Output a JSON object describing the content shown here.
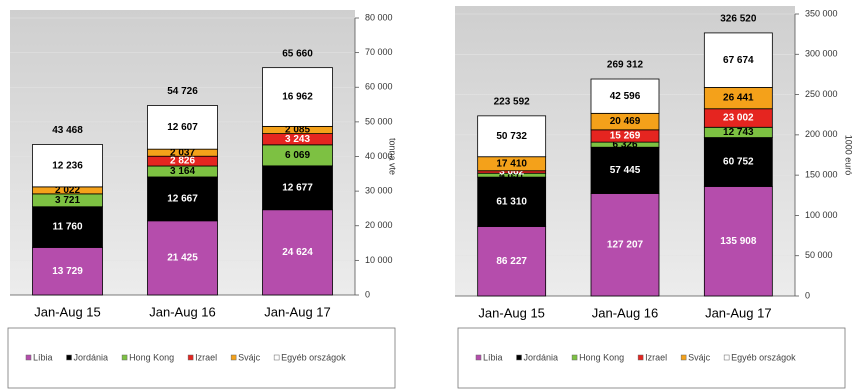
{
  "chart_data": [
    {
      "type": "stacked-bar",
      "y_label": "tonna vte",
      "categories": [
        "Jan-Aug 15",
        "Jan-Aug 16",
        "Jan-Aug 17"
      ],
      "totals": [
        43468,
        54726,
        65660
      ],
      "total_labels": [
        "43 468",
        "54 726",
        "65 660"
      ],
      "series": [
        {
          "name": "Líbia",
          "color": "#b54dac",
          "values": [
            13729,
            21425,
            24624
          ],
          "value_labels": [
            "13 729",
            "21 425",
            "24 624"
          ]
        },
        {
          "name": "Jordánia",
          "color": "#000000",
          "values": [
            11760,
            12667,
            12677
          ],
          "value_labels": [
            "11 760",
            "12 667",
            "12 677"
          ]
        },
        {
          "name": "Hong Kong",
          "color": "#7dc142",
          "values": [
            3721,
            3164,
            6069
          ],
          "value_labels": [
            "3 721",
            "3 164",
            "6 069"
          ]
        },
        {
          "name": "Izrael",
          "color": "#e52520",
          "values": [
            0,
            2826,
            3243
          ],
          "value_labels": [
            null,
            "2 826",
            "3 243"
          ]
        },
        {
          "name": "Svájc",
          "color": "#f4a11a",
          "values": [
            2022,
            2037,
            2085
          ],
          "value_labels": [
            "2 022",
            "2 037",
            "2 085"
          ]
        },
        {
          "name": "Egyéb országok",
          "color": "#ffffff",
          "values": [
            12236,
            12607,
            16962
          ],
          "value_labels": [
            "12 236",
            "12 607",
            "16 962"
          ]
        }
      ],
      "ylim": [
        0,
        80000
      ],
      "yticks": [
        0,
        {
          "value": 10000,
          "label": "10 000"
        },
        {
          "value": 20000,
          "label": "20 000"
        },
        {
          "value": 30000,
          "label": "30 000"
        },
        {
          "value": 40000,
          "label": "40 000"
        },
        {
          "value": 50000,
          "label": "50 000"
        },
        {
          "value": 60000,
          "label": "60 000"
        },
        {
          "value": 70000,
          "label": "70 000"
        },
        {
          "value": 80000,
          "label": "80 000"
        }
      ]
    },
    {
      "type": "stacked-bar",
      "y_label": "1000 euró",
      "categories": [
        "Jan-Aug 15",
        "Jan-Aug 16",
        "Jan-Aug 17"
      ],
      "totals": [
        223592,
        269312,
        326520
      ],
      "total_labels": [
        "223 592",
        "269 312",
        "326 520"
      ],
      "series": [
        {
          "name": "Líbia",
          "color": "#b54dac",
          "values": [
            86227,
            127207,
            135908
          ],
          "value_labels": [
            "86 227",
            "127 207",
            "135 908"
          ]
        },
        {
          "name": "Jordánia",
          "color": "#000000",
          "values": [
            61310,
            57445,
            60752
          ],
          "value_labels": [
            "61 310",
            "57 445",
            "60 752"
          ]
        },
        {
          "name": "Hong Kong",
          "color": "#7dc142",
          "values": [
            4851,
            6326,
            12743
          ],
          "value_labels": [
            "4 851",
            "6 326",
            "12 743"
          ]
        },
        {
          "name": "Izrael",
          "color": "#e52520",
          "values": [
            3062,
            15269,
            23002
          ],
          "value_labels": [
            "3 062",
            "15 269",
            "23 002"
          ]
        },
        {
          "name": "Svájc",
          "color": "#f4a11a",
          "values": [
            17410,
            20469,
            26441
          ],
          "value_labels": [
            "17 410",
            "20 469",
            "26 441"
          ]
        },
        {
          "name": "Egyéb országok",
          "color": "#ffffff",
          "values": [
            50732,
            42596,
            67674
          ],
          "value_labels": [
            "50 732",
            "42 596",
            "67 674"
          ]
        }
      ],
      "ylim": [
        0,
        350000
      ],
      "yticks": [
        0,
        {
          "value": 50000,
          "label": "50 000"
        },
        {
          "value": 100000,
          "label": "100 000"
        },
        {
          "value": 150000,
          "label": "150 000"
        },
        {
          "value": 200000,
          "label": "200 000"
        },
        {
          "value": 250000,
          "label": "250 000"
        },
        {
          "value": 300000,
          "label": "300 000"
        },
        {
          "value": 350000,
          "label": "350 000"
        }
      ]
    }
  ]
}
